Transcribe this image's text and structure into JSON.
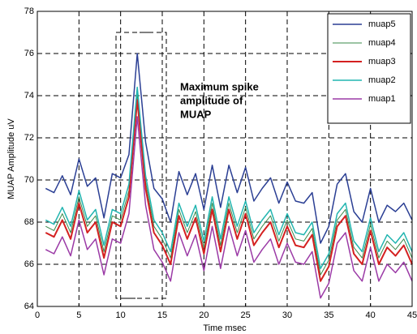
{
  "chart_data": {
    "type": "line",
    "xlabel": "Time msec",
    "ylabel": "MUAP  Amplitude uV",
    "annotation": [
      "Maximum spike",
      "amplitude of",
      "MUAP"
    ],
    "x": [
      1,
      2,
      3,
      4,
      5,
      6,
      7,
      8,
      9,
      10,
      11,
      12,
      13,
      14,
      15,
      16,
      17,
      18,
      19,
      20,
      21,
      22,
      23,
      24,
      25,
      26,
      27,
      28,
      29,
      30,
      31,
      32,
      33,
      34,
      35,
      36,
      37,
      38,
      39,
      40,
      41,
      42,
      43,
      44,
      45
    ],
    "series": [
      {
        "name": "muap5",
        "color": "#2b3f94",
        "width": 1.5,
        "values": [
          69.6,
          69.4,
          70.2,
          69.3,
          71.0,
          69.7,
          70.1,
          68.2,
          70.3,
          70.1,
          71.2,
          76.0,
          71.8,
          69.6,
          69.1,
          68.0,
          70.4,
          69.3,
          70.3,
          68.6,
          70.7,
          68.7,
          70.7,
          69.4,
          70.6,
          69.0,
          69.6,
          70.1,
          68.9,
          69.9,
          69.0,
          68.9,
          69.4,
          67.0,
          67.8,
          69.8,
          70.3,
          68.5,
          68.0,
          69.6,
          68.0,
          68.8,
          68.5,
          68.9,
          68.1
        ]
      },
      {
        "name": "muap4",
        "color": "#3a8a4a",
        "width": 1,
        "values": [
          67.8,
          67.6,
          68.4,
          67.5,
          69.2,
          67.8,
          68.3,
          66.6,
          68.3,
          68.1,
          69.5,
          74.1,
          69.9,
          67.8,
          67.2,
          66.3,
          68.6,
          67.5,
          68.5,
          66.8,
          68.9,
          66.9,
          68.9,
          67.5,
          68.7,
          67.2,
          67.8,
          68.3,
          67.1,
          68.1,
          67.2,
          67.1,
          67.7,
          65.5,
          66.2,
          68.1,
          68.6,
          66.8,
          66.3,
          67.9,
          66.3,
          67.1,
          66.7,
          67.2,
          66.3
        ]
      },
      {
        "name": "muap3",
        "color": "#d42020",
        "width": 2,
        "values": [
          67.5,
          67.3,
          68.1,
          67.2,
          68.9,
          67.5,
          68.0,
          66.3,
          68.0,
          67.8,
          69.2,
          73.8,
          69.6,
          67.5,
          66.9,
          66.0,
          68.3,
          67.2,
          68.2,
          66.5,
          68.6,
          66.6,
          68.6,
          67.2,
          68.4,
          66.9,
          67.5,
          68.0,
          66.8,
          67.8,
          66.9,
          66.8,
          67.4,
          65.2,
          65.9,
          67.8,
          68.3,
          66.5,
          66.0,
          67.6,
          66.0,
          66.8,
          66.4,
          66.9,
          66.0
        ]
      },
      {
        "name": "muap2",
        "color": "#22b5b0",
        "width": 1.5,
        "values": [
          68.1,
          67.9,
          68.7,
          67.8,
          69.5,
          68.1,
          68.6,
          66.9,
          68.6,
          68.4,
          69.8,
          74.4,
          70.2,
          68.1,
          67.5,
          66.6,
          68.9,
          67.8,
          68.8,
          67.1,
          69.2,
          67.2,
          69.2,
          67.8,
          69.0,
          67.5,
          68.1,
          68.6,
          67.4,
          68.4,
          67.5,
          67.4,
          68.0,
          65.8,
          66.5,
          68.4,
          68.9,
          67.1,
          66.6,
          68.2,
          66.6,
          67.4,
          67.0,
          67.5,
          66.6
        ]
      },
      {
        "name": "muap1",
        "color": "#9b3aa6",
        "width": 1.5,
        "values": [
          66.7,
          66.5,
          67.3,
          66.4,
          68.1,
          66.7,
          67.2,
          65.5,
          67.2,
          67.0,
          68.4,
          73.0,
          68.8,
          66.7,
          66.1,
          65.2,
          67.5,
          66.4,
          67.4,
          65.7,
          67.8,
          65.8,
          67.8,
          66.4,
          67.6,
          66.1,
          66.7,
          67.2,
          66.0,
          67.0,
          66.1,
          66.0,
          66.6,
          64.4,
          65.1,
          67.0,
          67.5,
          65.7,
          65.2,
          66.8,
          65.2,
          66.0,
          65.6,
          66.1,
          65.2
        ]
      }
    ],
    "xlim": [
      0,
      45
    ],
    "xticks": [
      0,
      5,
      10,
      15,
      20,
      25,
      30,
      35,
      40,
      45
    ],
    "ylim": [
      64,
      78
    ],
    "yticks": [
      64,
      66,
      68,
      70,
      72,
      74,
      76,
      78
    ],
    "grid": true,
    "legend": "upper right"
  }
}
